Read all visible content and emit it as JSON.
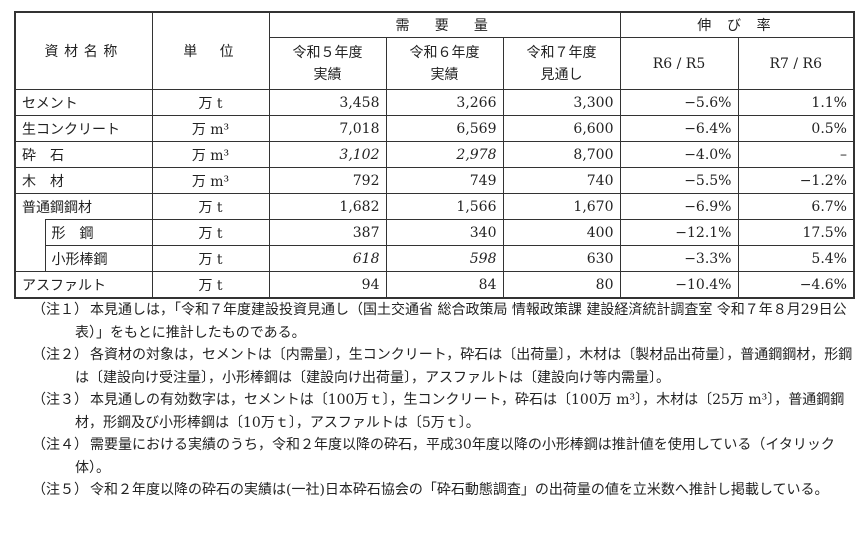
{
  "table": {
    "header": {
      "material": "資材名称",
      "unit": "単　位",
      "demand": "需　要　量",
      "growth": "伸 び 率",
      "col_r5": "令和５年度\n実績",
      "col_r6": "令和６年度\n実績",
      "col_r7": "令和７年度\n見通し",
      "col_r6r5": "R6 / R5",
      "col_r7r6": "R7 / R6"
    },
    "rows": [
      {
        "name": "セメント",
        "unit": "万 t",
        "r5": "3,458",
        "r6": "3,266",
        "r7": "3,300",
        "g1": "−5.6%",
        "g2": "1.1%"
      },
      {
        "name": "生コンクリート",
        "unit": "万 m³",
        "r5": "7,018",
        "r6": "6,569",
        "r7": "6,600",
        "g1": "−6.4%",
        "g2": "0.5%"
      },
      {
        "name": "砕　石",
        "unit": "万 m³",
        "r5": "3,102",
        "r6": "2,978",
        "r7": "8,700",
        "g1": "−4.0%",
        "g2": "–"
      },
      {
        "name": "木　材",
        "unit": "万 m³",
        "r5": "792",
        "r6": "749",
        "r7": "740",
        "g1": "−5.5%",
        "g2": "−1.2%"
      },
      {
        "name": "普通鋼鋼材",
        "unit": "万 t",
        "r5": "1,682",
        "r6": "1,566",
        "r7": "1,670",
        "g1": "−6.9%",
        "g2": "6.7%"
      },
      {
        "name": "形　鋼",
        "unit": "万 t",
        "r5": "387",
        "r6": "340",
        "r7": "400",
        "g1": "−12.1%",
        "g2": "17.5%"
      },
      {
        "name": "小形棒鋼",
        "unit": "万 t",
        "r5": "618",
        "r6": "598",
        "r7": "630",
        "g1": "−3.3%",
        "g2": "5.4%"
      },
      {
        "name": "アスファルト",
        "unit": "万 t",
        "r5": "94",
        "r6": "84",
        "r7": "80",
        "g1": "−10.4%",
        "g2": "−4.6%"
      }
    ]
  },
  "notes": [
    {
      "label": "（注１）",
      "text": "本見通しは，「令和７年度建設投資見通し（国土交通省 総合政策局 情報政策課 建設経済統計調査室 令和７年８月29日公表）」をもとに推計したものである。"
    },
    {
      "label": "（注２）",
      "text": "各資材の対象は，セメントは〔内需量〕，生コンクリート，砕石は〔出荷量〕，木材は〔製材品出荷量〕，普通鋼鋼材，形鋼は〔建設向け受注量〕，小形棒鋼は〔建設向け出荷量〕，アスファルトは〔建設向け等内需量〕。"
    },
    {
      "label": "（注３）",
      "text": "本見通しの有効数字は，セメントは〔100万ｔ〕，生コンクリート，砕石は〔100万 m³〕，木材は〔25万 m³〕，普通鋼鋼材，形鋼及び小形棒鋼は〔10万ｔ〕，アスファルトは〔5万ｔ〕。"
    },
    {
      "label": "（注４）",
      "text": "需要量における実績のうち，令和２年度以降の砕石，平成30年度以降の小形棒鋼は推計値を使用している（イタリック体）。"
    },
    {
      "label": "（注５）",
      "text": "令和２年度以降の砕石の実績は(一社)日本砕石協会の「砕石動態調査」の出荷量の値を立米数へ推計し掲載している。"
    }
  ]
}
